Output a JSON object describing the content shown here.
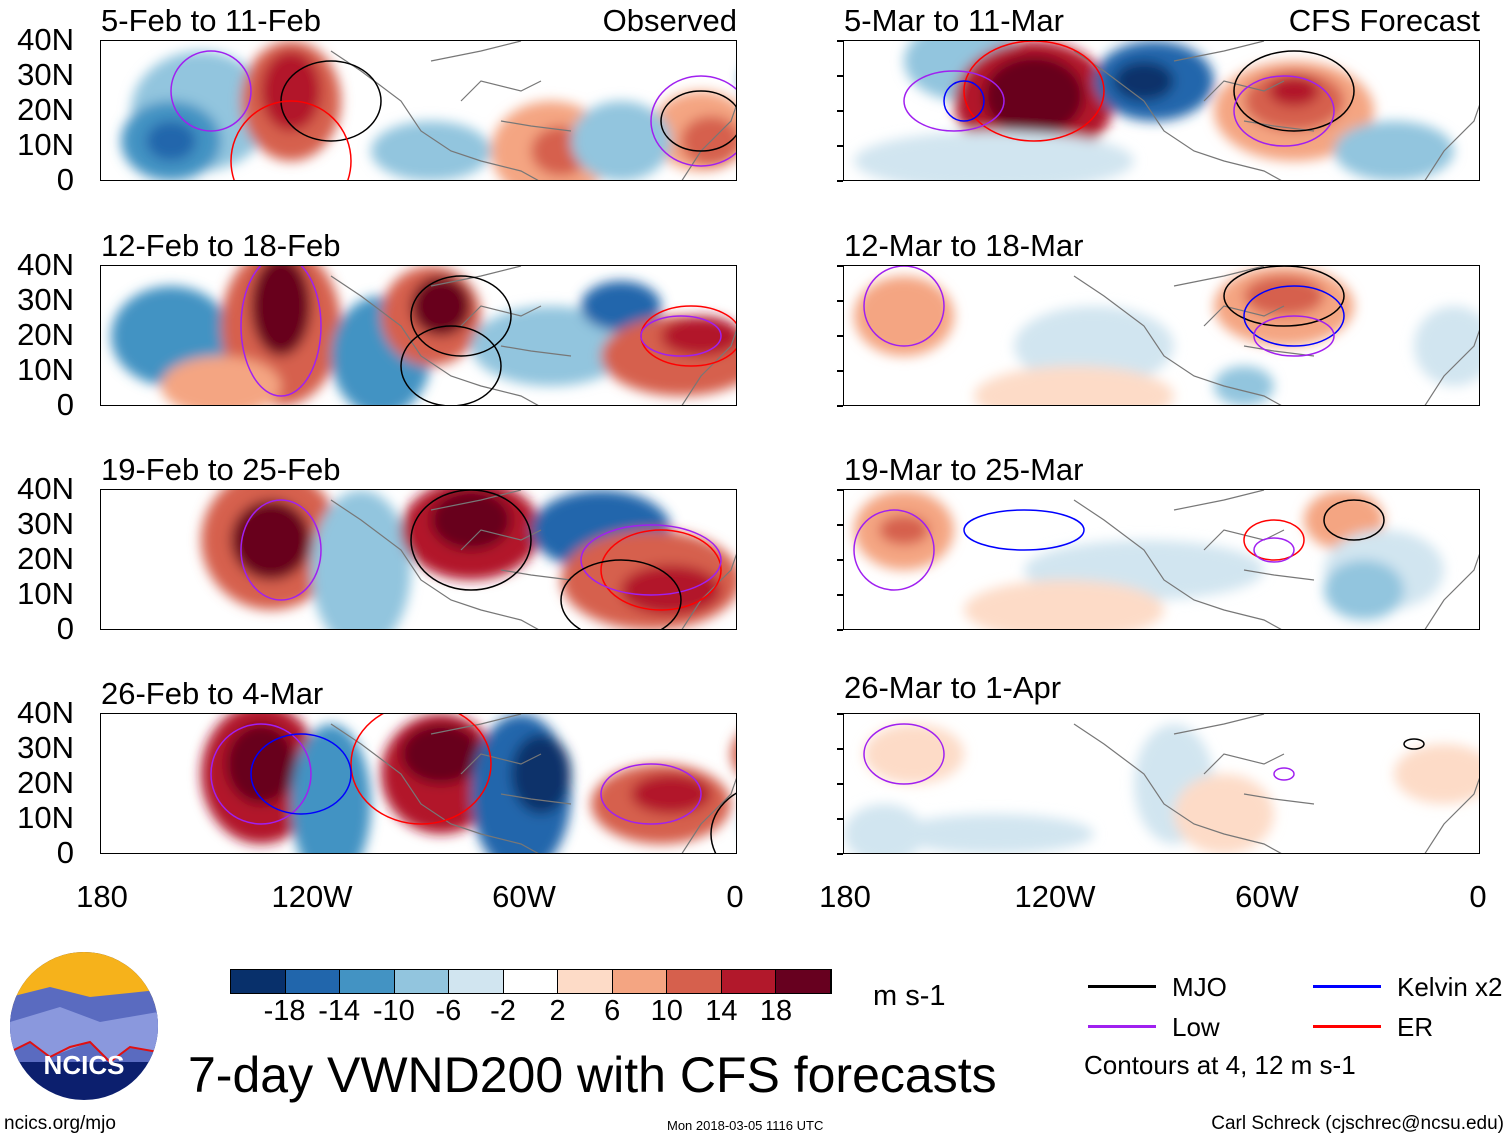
{
  "panels_left": {
    "header_right": "Observed",
    "titles": [
      "5-Feb to 11-Feb",
      "12-Feb to 18-Feb",
      "19-Feb to 25-Feb",
      "26-Feb to 4-Mar"
    ]
  },
  "panels_right": {
    "header_right": "CFS Forecast",
    "titles": [
      "5-Mar to 11-Mar",
      "12-Mar to 18-Mar",
      "19-Mar to 25-Mar",
      "26-Mar to 1-Apr"
    ]
  },
  "lat_labels": [
    "40N",
    "30N",
    "20N",
    "10N",
    "0"
  ],
  "lon_labels": [
    "180",
    "120W",
    "60W",
    "0"
  ],
  "colorbar": {
    "colors": [
      "#08306b",
      "#2166ac",
      "#4393c3",
      "#92c5de",
      "#d1e5f0",
      "#ffffff",
      "#fddbc7",
      "#f4a582",
      "#d6604d",
      "#b2182b",
      "#67001f"
    ],
    "ticks": [
      "-18",
      "-14",
      "-10",
      "-6",
      "-2",
      "2",
      "6",
      "10",
      "14",
      "18"
    ],
    "units": "m s-1"
  },
  "legend": {
    "items": [
      {
        "label": "MJO",
        "color": "#000000"
      },
      {
        "label": "Kelvin x2",
        "color": "#0000ff"
      },
      {
        "label": "Low",
        "color": "#a020f0"
      },
      {
        "label": "ER",
        "color": "#ff0000"
      }
    ],
    "note": "Contours at 4, 12 m s-1"
  },
  "title": "7-day VWND200 with CFS forecasts",
  "logo_text": "NCICS",
  "footer": {
    "left": "ncics.org/mjo",
    "center": "Mon 2018-03-05 1116 UTC",
    "right": "Carl Schreck (cjschrec@ncsu.edu)"
  }
}
